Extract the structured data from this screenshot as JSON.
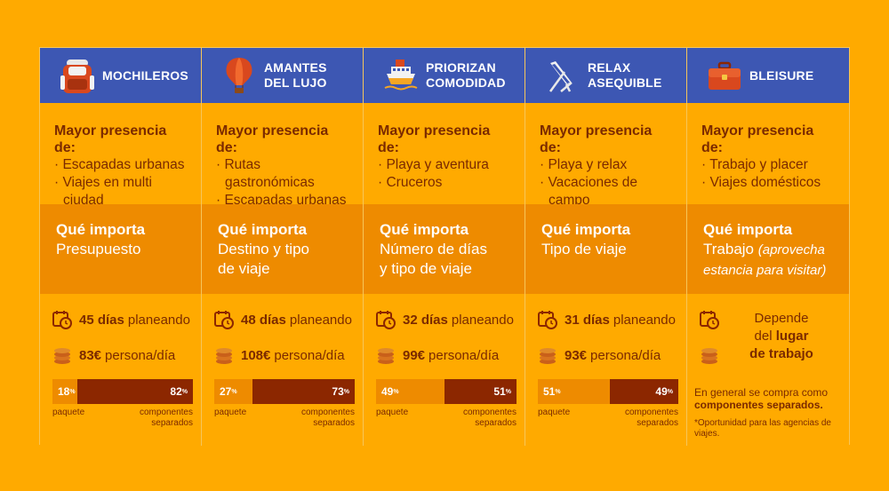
{
  "columns": [
    {
      "title": "MOCHILEROS",
      "icon": "backpack-icon",
      "presence_label": "Mayor presencia de:",
      "presence_items": [
        "· Escapadas urbanas",
        "· Viajes en multi ciudad"
      ],
      "importa_label": "Qué importa",
      "importa_value": "Presupuesto",
      "days": "45 días",
      "days_suffix": "planeando",
      "cost": "83€",
      "cost_suffix": "persona/día",
      "paquete_pct": "18",
      "comp_pct": "82",
      "paquete_fraction": 0.18,
      "paquete_label": "paquete",
      "comp_label": "componentes\nseparados"
    },
    {
      "title": "AMANTES\nDEL LUJO",
      "icon": "hot-air-balloon-icon",
      "presence_label": "Mayor presencia de:",
      "presence_items": [
        "· Rutas gastronómicas",
        "· Escapadas urbanas"
      ],
      "importa_label": "Qué importa",
      "importa_value": "Destino y tipo\nde viaje",
      "days": "48 días",
      "days_suffix": "planeando",
      "cost": "108€",
      "cost_suffix": "persona/día",
      "paquete_pct": "27",
      "comp_pct": "73",
      "paquete_fraction": 0.27,
      "paquete_label": "paquete",
      "comp_label": "componentes\nseparados"
    },
    {
      "title": "PRIORIZAN\nCOMODIDAD",
      "icon": "cruise-ship-icon",
      "presence_label": "Mayor presencia de:",
      "presence_items": [
        "· Playa y aventura",
        "· Cruceros"
      ],
      "importa_label": "Qué importa",
      "importa_value": "Número de días\ny tipo de viaje",
      "days": "32 días",
      "days_suffix": "planeando",
      "cost": "99€",
      "cost_suffix": "persona/día",
      "paquete_pct": "49",
      "comp_pct": "51",
      "paquete_fraction": 0.49,
      "paquete_label": "paquete",
      "comp_label": "componentes\nseparados"
    },
    {
      "title": "RELAX\nASEQUIBLE",
      "icon": "beach-chair-icon",
      "presence_label": "Mayor presencia de:",
      "presence_items": [
        "· Playa y relax",
        "· Vacaciones de campo"
      ],
      "importa_label": "Qué importa",
      "importa_value": "Tipo de viaje",
      "days": "31 días",
      "days_suffix": "planeando",
      "cost": "93€",
      "cost_suffix": "persona/día",
      "paquete_pct": "51",
      "comp_pct": "49",
      "paquete_fraction": 0.51,
      "paquete_label": "paquete",
      "comp_label": "componentes\nseparados"
    },
    {
      "title": "BLEISURE",
      "icon": "briefcase-icon",
      "presence_label": "Mayor presencia de:",
      "presence_items": [
        "· Trabajo y placer",
        "· Viajes domésticos"
      ],
      "importa_label": "Qué importa",
      "importa_value": "Trabajo",
      "importa_note": "(aprovecha estancia para visitar)",
      "dep_1": "Depende",
      "dep_2": "del",
      "dep_3": "lugar",
      "dep_4": "de trabajo",
      "note_1": "En general se compra como",
      "note_2": "componentes separados.",
      "note_3": "*Oportunidad para las agencias de viajes."
    }
  ],
  "colors": {
    "header": "#3D57B3",
    "bg": "#FFAA00",
    "importa_bg": "#EE8B00",
    "dark": "#8C2700",
    "text": "#7B2A00"
  }
}
